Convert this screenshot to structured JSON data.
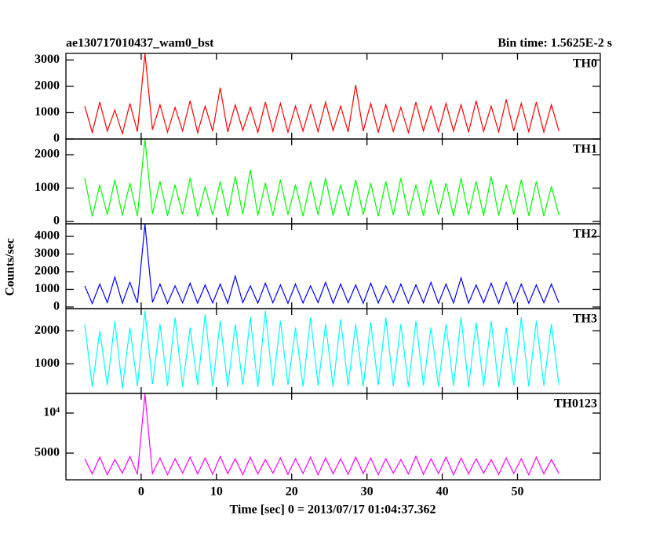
{
  "chart_data": {
    "type": "line",
    "title": "ae130717010437_wam0_bst",
    "subtitle": "Bin time: 1.5625E-2 s",
    "xlabel": "Time [sec] 0 = 2013/07/17 01:04:37.362",
    "ylabel": "Counts/sec",
    "xlim": [
      -10,
      61
    ],
    "xticks": [
      0,
      10,
      20,
      30,
      40,
      50
    ],
    "x": [
      -7.5,
      -6.5,
      -5.5,
      -4.5,
      -3.5,
      -2.5,
      -1.5,
      -0.5,
      0.5,
      1.5,
      2.5,
      3.5,
      4.5,
      5.5,
      6.5,
      7.5,
      8.5,
      9.5,
      10.5,
      11.5,
      12.5,
      13.5,
      14.5,
      15.5,
      16.5,
      17.5,
      18.5,
      19.5,
      20.5,
      21.5,
      22.5,
      23.5,
      24.5,
      25.5,
      26.5,
      27.5,
      28.5,
      29.5,
      30.5,
      31.5,
      32.5,
      33.5,
      34.5,
      35.5,
      36.5,
      37.5,
      38.5,
      39.5,
      40.5,
      41.5,
      42.5,
      43.5,
      44.5,
      45.5,
      46.5,
      47.5,
      48.5,
      49.5,
      50.5,
      51.5,
      52.5,
      53.5,
      54.5,
      55.5
    ],
    "panels": [
      {
        "ylim": [
          0,
          3250
        ],
        "yticks": [
          0,
          1000,
          2000,
          3000
        ],
        "series": [
          {
            "name": "TH0",
            "color": "#ff0000",
            "values": [
              1250,
              250,
              1400,
              300,
              1100,
              200,
              1350,
              280,
              3250,
              350,
              1300,
              260,
              1200,
              310,
              1450,
              240,
              1250,
              300,
              1950,
              270,
              1300,
              330,
              1200,
              250,
              1400,
              290,
              1350,
              260,
              1250,
              300,
              1300,
              280,
              1400,
              320,
              1250,
              270,
              2050,
              300,
              1350,
              260,
              1300,
              290,
              1200,
              250,
              1400,
              310,
              1250,
              280,
              1350,
              300,
              1300,
              260,
              1450,
              290,
              1250,
              270,
              1500,
              300,
              1350,
              280,
              1400,
              260,
              1300,
              300
            ]
          }
        ]
      },
      {
        "ylim": [
          -70,
          2470
        ],
        "yticks": [
          0,
          1000,
          2000
        ],
        "series": [
          {
            "name": "TH1",
            "color": "#00ff00",
            "values": [
              1300,
              150,
              1100,
              200,
              1250,
              180,
              1150,
              160,
              2470,
              220,
              1200,
              170,
              1100,
              200,
              1300,
              150,
              1050,
              190,
              1200,
              160,
              1350,
              210,
              1550,
              180,
              1150,
              170,
              1250,
              200,
              1100,
              160,
              1200,
              190,
              1300,
              180,
              1100,
              170,
              1250,
              200,
              1150,
              160,
              1200,
              190,
              1300,
              180,
              1100,
              170,
              1250,
              200,
              1150,
              160,
              1300,
              190,
              1200,
              170,
              1350,
              180,
              1100,
              200,
              1250,
              170,
              1200,
              160,
              1050,
              190
            ]
          }
        ]
      },
      {
        "ylim": [
          -90,
          4710
        ],
        "yticks": [
          0,
          1000,
          2000,
          3000,
          4000
        ],
        "series": [
          {
            "name": "TH2",
            "color": "#0000ff",
            "values": [
              1200,
              200,
              1300,
              250,
              1700,
              220,
              1400,
              230,
              4700,
              260,
              1300,
              210,
              1200,
              240,
              1350,
              220,
              1250,
              230,
              1300,
              210,
              1750,
              250,
              1200,
              220,
              1350,
              240,
              1250,
              210,
              1300,
              230,
              1200,
              250,
              1400,
              220,
              1300,
              240,
              1250,
              210,
              1350,
              230,
              1200,
              250,
              1300,
              220,
              1250,
              240,
              1400,
              210,
              1300,
              230,
              1650,
              220,
              1250,
              240,
              1350,
              210,
              1400,
              230,
              1300,
              220,
              1250,
              240,
              1300,
              230
            ]
          }
        ]
      },
      {
        "ylim": [
          100,
          2670
        ],
        "yticks": [
          1000,
          2000
        ],
        "series": [
          {
            "name": "TH3",
            "color": "#00ffff",
            "values": [
              2200,
              300,
              2000,
              350,
              2300,
              250,
              2100,
              320,
              2600,
              380,
              2200,
              330,
              2400,
              300,
              2100,
              350,
              2500,
              320,
              2300,
              290,
              2200,
              350,
              2400,
              300,
              2600,
              330,
              2300,
              360,
              2100,
              310,
              2400,
              340,
              2200,
              300,
              2350,
              330,
              2200,
              310,
              2250,
              350,
              2400,
              320,
              2200,
              300,
              2300,
              340,
              2100,
              310,
              2200,
              330,
              2400,
              300,
              2250,
              320,
              2300,
              290,
              2100,
              340,
              2400,
              310,
              2300,
              330,
              2200,
              350
            ]
          }
        ]
      },
      {
        "ylim": [
          1670,
          12450
        ],
        "yticks": [
          5000,
          {
            "value": 10000,
            "label": "10⁴"
          }
        ],
        "series": [
          {
            "name": "TH0123",
            "color": "#ff00ff",
            "values": [
              4300,
              2400,
              4500,
              2300,
              4200,
              2500,
              4600,
              2350,
              12400,
              2450,
              4400,
              2300,
              4300,
              2500,
              4500,
              2400,
              4400,
              2350,
              4600,
              2450,
              4300,
              2300,
              4500,
              2400,
              4200,
              2500,
              4400,
              2350,
              4300,
              2450,
              4500,
              2300,
              4400,
              2400,
              4300,
              2350,
              4500,
              2450,
              4400,
              2300,
              4300,
              2500,
              4200,
              2400,
              4600,
              2350,
              4300,
              2450,
              4500,
              2300,
              4400,
              2400,
              4300,
              2500,
              4200,
              2350,
              4400,
              2450,
              4300,
              2300,
              4500,
              2400,
              4200,
              2450
            ]
          }
        ]
      }
    ]
  }
}
